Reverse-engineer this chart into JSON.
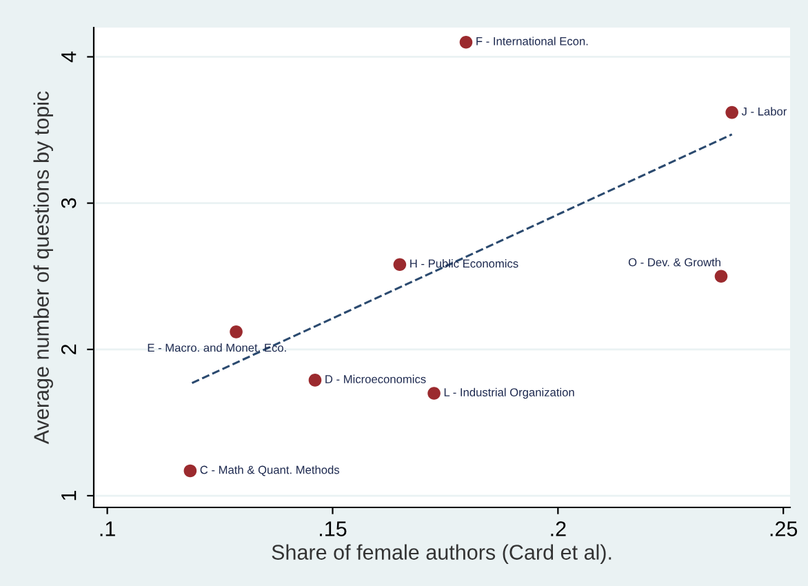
{
  "chart_data": {
    "type": "scatter",
    "xlabel": "Share of female authors (Card et al).",
    "ylabel": "Average number of questions by topic",
    "x": [
      0.1796,
      0.2386,
      0.1649,
      0.2362,
      0.1286,
      0.1461,
      0.1725,
      0.1184
    ],
    "series": [
      {
        "color": "#9b2a2e",
        "values": [
          4.1,
          3.62,
          2.58,
          2.5,
          2.12,
          1.79,
          1.7,
          1.17
        ]
      },
      {
        "type": "line",
        "x": [
          0.1188,
          0.2386
        ],
        "values": [
          1.77,
          3.47
        ],
        "color": "#2b4a6f",
        "line_style": "dashed",
        "marker": "none"
      }
    ],
    "annotations": [
      {
        "text": "F - International Econ.",
        "x": 0.1796,
        "y": 4.1
      },
      {
        "text": "J - Labor",
        "x": 0.2386,
        "y": 3.62
      },
      {
        "text": "H - Public Economics",
        "x": 0.1649,
        "y": 2.58
      },
      {
        "text": "O - Dev. & Growth",
        "x": 0.2362,
        "y": 2.5
      },
      {
        "text": "E - Macro. and Monet. Eco.",
        "x": 0.1286,
        "y": 2.12
      },
      {
        "text": "D - Microeconomics",
        "x": 0.1461,
        "y": 1.79
      },
      {
        "text": "L - Industrial Organization",
        "x": 0.1725,
        "y": 1.7
      },
      {
        "text": "C - Math & Quant. Methods",
        "x": 0.1184,
        "y": 1.17
      }
    ],
    "xlim": [
      0.097,
      0.2515
    ],
    "ylim": [
      0.92,
      4.2
    ],
    "xticks": [
      {
        "value": 0.1,
        "label": ".1"
      },
      {
        "value": 0.15,
        "label": ".15"
      },
      {
        "value": 0.2,
        "label": ".2"
      },
      {
        "value": 0.25,
        "label": ".25"
      }
    ],
    "yticks": [
      1,
      2,
      3,
      4
    ],
    "grid": "y",
    "marker": "circle",
    "legend": false
  }
}
